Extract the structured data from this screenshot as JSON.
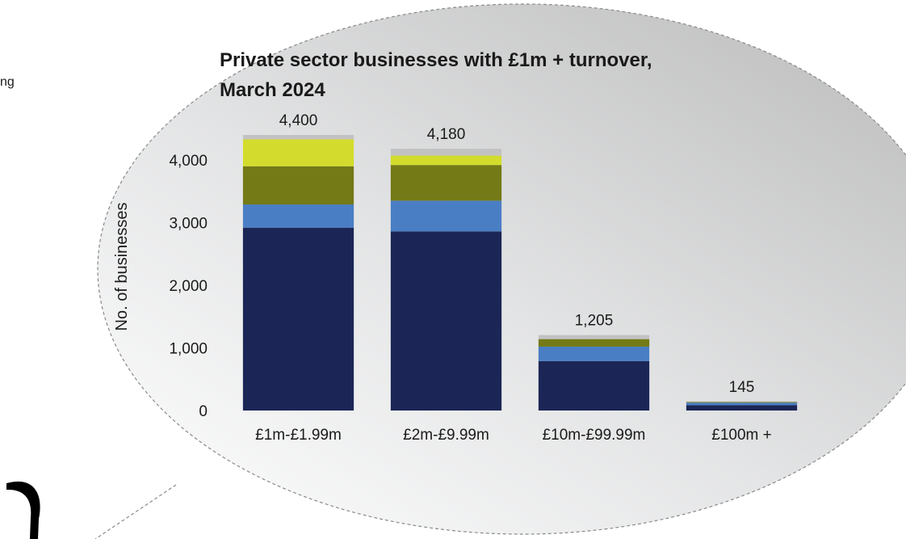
{
  "fragment_text": "ng",
  "chart_data": {
    "type": "bar",
    "stacked": true,
    "title": "Private sector businesses with £1m + turnover, March 2024",
    "title_lines": [
      "Private sector businesses with £1m + turnover,",
      "March 2024"
    ],
    "ylabel": "No. of businesses",
    "xlabel": "",
    "ylim": [
      0,
      4400
    ],
    "yticks": [
      0,
      1000,
      2000,
      3000,
      4000
    ],
    "ytick_labels": [
      "0",
      "1,000",
      "2,000",
      "3,000",
      "4,000"
    ],
    "grid": false,
    "legend": "none",
    "categories": [
      "£1m-£1.99m",
      "£2m-£9.99m",
      "£10m-£99.99m",
      "£100m +"
    ],
    "totals": [
      4400,
      4180,
      1205,
      145
    ],
    "total_labels": [
      "4,400",
      "4,180",
      "1,205",
      "145"
    ],
    "series": [
      {
        "color": "#1b2656",
        "values": [
          2920,
          2860,
          790,
          85
        ]
      },
      {
        "color": "#4a7ec4",
        "values": [
          370,
          490,
          230,
          40
        ]
      },
      {
        "color": "#747a16",
        "values": [
          610,
          570,
          120,
          12
        ]
      },
      {
        "color": "#d3dc2c",
        "values": [
          430,
          150,
          0,
          0
        ]
      },
      {
        "color": "#c2c2c2",
        "values": [
          70,
          110,
          65,
          8
        ]
      }
    ]
  }
}
